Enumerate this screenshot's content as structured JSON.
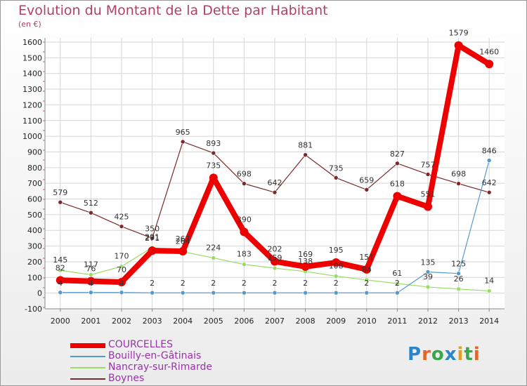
{
  "title": "Evolution du Montant de la Dette par Habitant",
  "subtitle": "(en €)",
  "logo": "Proxiti",
  "chart_data": {
    "type": "line",
    "x": [
      "2000",
      "2001",
      "2002",
      "2003",
      "2004",
      "2005",
      "2006",
      "2007",
      "2008",
      "2009",
      "2010",
      "2011",
      "2012",
      "2013",
      "2014"
    ],
    "ylim": [
      -100,
      1600
    ],
    "yticks": [
      -100,
      0,
      100,
      200,
      300,
      400,
      500,
      600,
      700,
      800,
      900,
      1000,
      1100,
      1200,
      1300,
      1400,
      1500,
      1600
    ],
    "grid": true,
    "legend_position": "bottom-left",
    "series": [
      {
        "name": "Boynes",
        "color": "#7a2a2a",
        "values": [
          579,
          512,
          425,
          350,
          965,
          893,
          698,
          642,
          881,
          735,
          659,
          827,
          757,
          698,
          642
        ]
      },
      {
        "name": "Nancray-sur-Rimarde",
        "color": "#99dd66",
        "values": [
          145,
          117,
          170,
          291,
          264,
          224,
          183,
          159,
          138,
          108,
          84,
          61,
          39,
          26,
          14
        ]
      },
      {
        "name": "Bouilly-en-Gâtinais",
        "color": "#5599cc",
        "values": [
          4,
          4,
          4,
          2,
          2,
          2,
          2,
          2,
          2,
          2,
          2,
          2,
          135,
          125,
          846
        ]
      },
      {
        "name": "COURCELLES",
        "color": "#ee0000",
        "values": [
          82,
          76,
          70,
          271,
          267,
          735,
          390,
          202,
          169,
          195,
          151,
          618,
          551,
          1579,
          1460
        ]
      }
    ]
  },
  "legend": [
    {
      "name": "COURCELLES",
      "color": "#ee0000"
    },
    {
      "name": "Bouilly-en-Gâtinais",
      "color": "#5599cc"
    },
    {
      "name": "Nancray-sur-Rimarde",
      "color": "#99dd66"
    },
    {
      "name": "Boynes",
      "color": "#7a2a2a"
    }
  ]
}
